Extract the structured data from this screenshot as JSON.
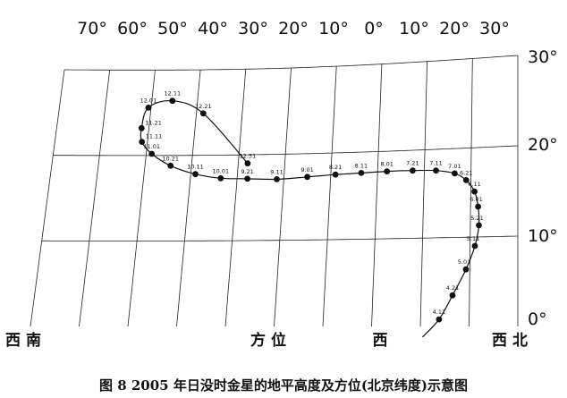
{
  "caption": "图 8   2005 年日没时金星的地平高度及方位(北京纬度)示意图",
  "chart_data": {
    "type": "scatter",
    "title": "",
    "azimuth_ticks": [
      "70°",
      "60°",
      "50°",
      "40°",
      "30°",
      "20°",
      "10°",
      "0°",
      "10°",
      "20°",
      "30°"
    ],
    "altitude_ticks": [
      "30°",
      "20°",
      "10°",
      "0°"
    ],
    "azimuth_axis_labels": [
      {
        "text": "西 南"
      },
      {
        "text": "方 位"
      },
      {
        "text": "西"
      },
      {
        "text": "西 北"
      }
    ],
    "xlim": [
      -30,
      70
    ],
    "ylim": [
      0,
      30
    ],
    "series": [
      {
        "points": [
          {
            "label": "4.11",
            "az": -13.8,
            "alt": 0.8
          },
          {
            "label": "4.21",
            "az": -16.5,
            "alt": 3.5
          },
          {
            "label": "5.01",
            "az": -19.2,
            "alt": 6.4
          },
          {
            "label": "5.11",
            "az": -21.0,
            "alt": 9.0
          },
          {
            "label": "5.21",
            "az": -21.8,
            "alt": 11.3
          },
          {
            "label": "6.01",
            "az": -21.6,
            "alt": 13.4
          },
          {
            "label": "6.11",
            "az": -20.8,
            "alt": 15.1
          },
          {
            "label": "6.21",
            "az": -19.0,
            "alt": 16.4
          },
          {
            "label": "7.01",
            "az": -16.5,
            "alt": 17.2
          },
          {
            "label": "7.11",
            "az": -12.5,
            "alt": 17.6
          },
          {
            "label": "7.21",
            "az": -7.5,
            "alt": 17.7
          },
          {
            "label": "8.01",
            "az": -2.0,
            "alt": 17.7
          },
          {
            "label": "8.11",
            "az": 3.5,
            "alt": 17.6
          },
          {
            "label": "8.21",
            "az": 9.0,
            "alt": 17.5
          },
          {
            "label": "9.01",
            "az": 15.0,
            "alt": 17.3
          },
          {
            "label": "9.11",
            "az": 21.5,
            "alt": 17.1
          },
          {
            "label": "9.21",
            "az": 27.8,
            "alt": 17.2
          },
          {
            "label": "10.01",
            "az": 33.5,
            "alt": 17.3
          },
          {
            "label": "10.11",
            "az": 39.0,
            "alt": 17.8
          },
          {
            "label": "10.21",
            "az": 44.5,
            "alt": 18.8
          },
          {
            "label": "11.01",
            "az": 48.8,
            "alt": 20.2
          },
          {
            "label": "11.11",
            "az": 51.2,
            "alt": 21.6
          },
          {
            "label": "11.21",
            "az": 51.6,
            "alt": 23.2
          },
          {
            "label": "12.01",
            "az": 50.6,
            "alt": 25.6
          },
          {
            "label": "12.11",
            "az": 45.5,
            "alt": 26.4
          },
          {
            "label": "12.21",
            "az": 38.5,
            "alt": 24.9
          },
          {
            "label": "12.31",
            "az": 28.0,
            "alt": 19.0
          }
        ]
      }
    ],
    "grid": true
  }
}
